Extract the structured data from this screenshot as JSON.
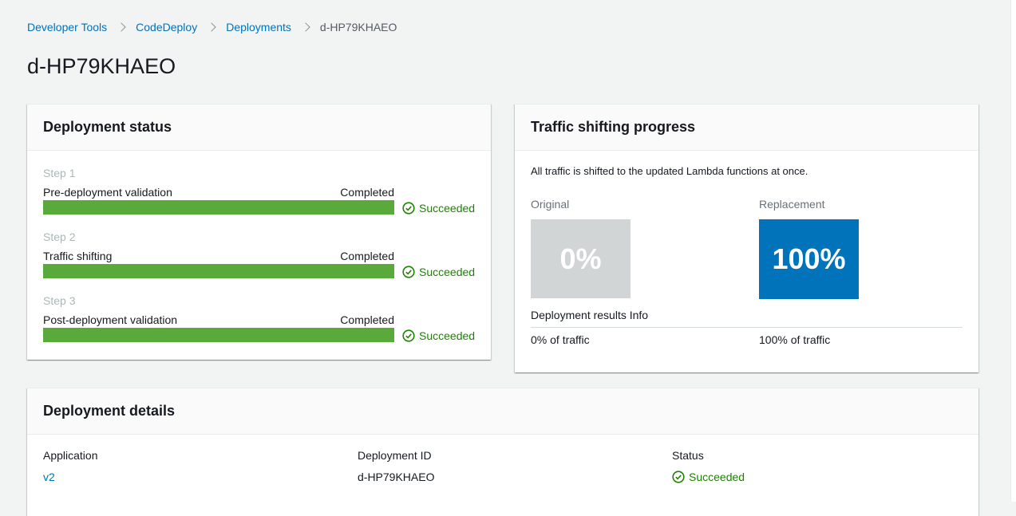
{
  "breadcrumb": {
    "items": [
      "Developer Tools",
      "CodeDeploy",
      "Deployments"
    ],
    "current": "d-HP79KHAEO"
  },
  "page_title": "d-HP79KHAEO",
  "deployment_status": {
    "title": "Deployment status",
    "steps": [
      {
        "step": "Step 1",
        "name": "Pre-deployment validation",
        "state": "Completed",
        "progress": 1.0,
        "result": "Succeeded"
      },
      {
        "step": "Step 2",
        "name": "Traffic shifting",
        "state": "Completed",
        "progress": 1.0,
        "result": "Succeeded"
      },
      {
        "step": "Step 3",
        "name": "Post-deployment validation",
        "state": "Completed",
        "progress": 1.0,
        "result": "Succeeded"
      }
    ]
  },
  "traffic_shifting": {
    "title": "Traffic shifting progress",
    "description": "All traffic is shifted to the updated Lambda functions at once.",
    "original_label": "Original",
    "original_percent": "0%",
    "replacement_label": "Replacement",
    "replacement_percent": "100%",
    "results_label": "Deployment results Info",
    "original_traffic": "0% of traffic",
    "replacement_traffic": "100% of traffic"
  },
  "deployment_details": {
    "title": "Deployment details",
    "application_label": "Application",
    "application_value": "v2",
    "id_label": "Deployment ID",
    "id_value": "d-HP79KHAEO",
    "status_label": "Status",
    "status_value": "Succeeded"
  },
  "colors": {
    "accent": "#0073bb",
    "success": "#1d8102",
    "progress_fill": "#5aa93b"
  },
  "icons": {
    "success": "check-circle-icon",
    "separator": "chevron-right-icon"
  }
}
